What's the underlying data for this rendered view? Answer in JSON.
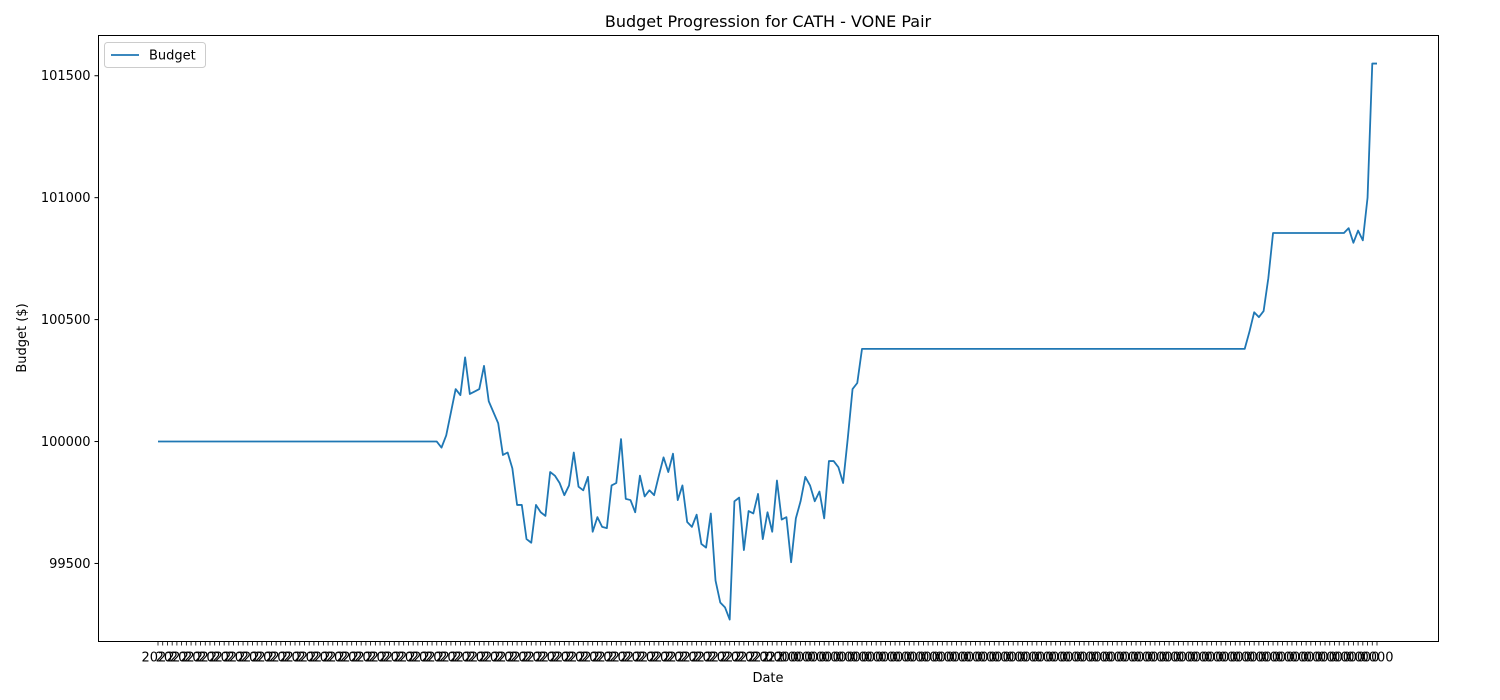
{
  "chart_data": {
    "type": "line",
    "title": "Budget Progression for CATH - VONE Pair",
    "xlabel": "Date",
    "ylabel": "Budget ($)",
    "ylim": [
      99180,
      101665
    ],
    "yticks": [
      99500,
      100000,
      100500,
      101000,
      101500
    ],
    "x_tick_labels_overlapping": true,
    "x_tick_label_fragments": [
      "2022",
      "0000"
    ],
    "grid": false,
    "legend": {
      "location": "upper left"
    },
    "series": [
      {
        "name": "Budget",
        "color": "#1f77b4",
        "values": [
          100000,
          100000,
          100000,
          100000,
          100000,
          100000,
          100000,
          100000,
          100000,
          100000,
          100000,
          100000,
          100000,
          100000,
          100000,
          100000,
          100000,
          100000,
          100000,
          100000,
          100000,
          100000,
          100000,
          100000,
          100000,
          100000,
          100000,
          100000,
          100000,
          100000,
          100000,
          100000,
          100000,
          100000,
          100000,
          100000,
          100000,
          100000,
          100000,
          100000,
          100000,
          100000,
          100000,
          100000,
          100000,
          100000,
          100000,
          100000,
          100000,
          100000,
          100000,
          100000,
          100000,
          100000,
          100000,
          100000,
          100000,
          100000,
          100000,
          100000,
          99975,
          100025,
          100120,
          100215,
          100190,
          100345,
          100195,
          100205,
          100215,
          100310,
          100165,
          100120,
          100075,
          99945,
          99955,
          99890,
          99740,
          99740,
          99600,
          99585,
          99740,
          99710,
          99695,
          99875,
          99860,
          99830,
          99780,
          99820,
          99955,
          99815,
          99800,
          99855,
          99630,
          99690,
          99650,
          99645,
          99820,
          99830,
          100010,
          99765,
          99760,
          99710,
          99860,
          99775,
          99800,
          99780,
          99860,
          99935,
          99875,
          99950,
          99760,
          99820,
          99670,
          99650,
          99700,
          99580,
          99565,
          99705,
          99430,
          99340,
          99320,
          99270,
          99755,
          99770,
          99555,
          99715,
          99705,
          99785,
          99600,
          99710,
          99630,
          99840,
          99680,
          99690,
          99505,
          99685,
          99755,
          99855,
          99820,
          99755,
          99795,
          99685,
          99920,
          99920,
          99895,
          99830,
          100015,
          100215,
          100240,
          100380,
          100380,
          100380,
          100380,
          100380,
          100380,
          100380,
          100380,
          100380,
          100380,
          100380,
          100380,
          100380,
          100380,
          100380,
          100380,
          100380,
          100380,
          100380,
          100380,
          100380,
          100380,
          100380,
          100380,
          100380,
          100380,
          100380,
          100380,
          100380,
          100380,
          100380,
          100380,
          100380,
          100380,
          100380,
          100380,
          100380,
          100380,
          100380,
          100380,
          100380,
          100380,
          100380,
          100380,
          100380,
          100380,
          100380,
          100380,
          100380,
          100380,
          100380,
          100380,
          100380,
          100380,
          100380,
          100380,
          100380,
          100380,
          100380,
          100380,
          100380,
          100380,
          100380,
          100380,
          100380,
          100380,
          100380,
          100380,
          100380,
          100380,
          100380,
          100380,
          100380,
          100380,
          100380,
          100380,
          100380,
          100380,
          100380,
          100380,
          100380,
          100380,
          100450,
          100530,
          100510,
          100535,
          100670,
          100855,
          100855,
          100855,
          100855,
          100855,
          100855,
          100855,
          100855,
          100855,
          100855,
          100855,
          100855,
          100855,
          100855,
          100855,
          100855,
          100875,
          100815,
          100865,
          100825,
          101000,
          101550,
          101550
        ]
      }
    ]
  }
}
